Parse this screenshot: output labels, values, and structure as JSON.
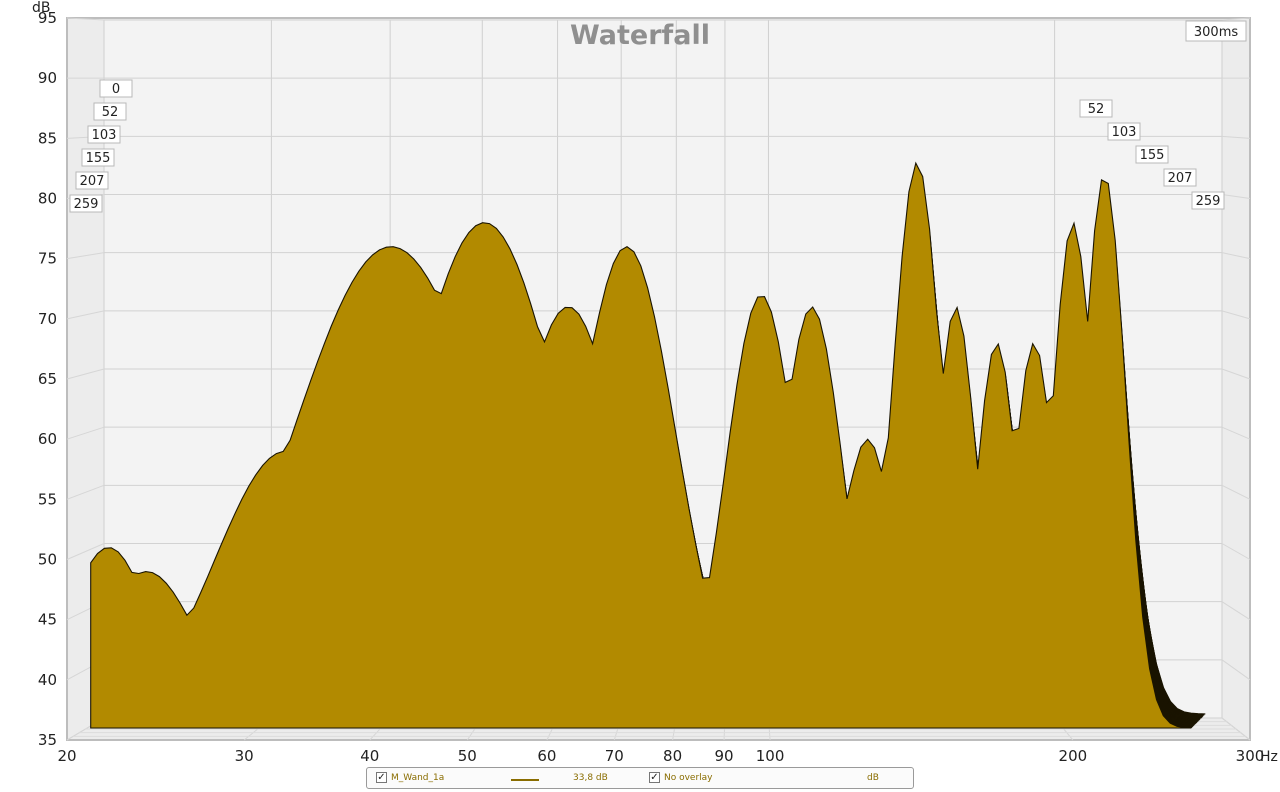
{
  "chart_data": {
    "type": "area",
    "style": "waterfall",
    "title": "Waterfall",
    "ylabel": "dB",
    "xlabel": "Hz",
    "x_scale": "log",
    "xlim": [
      20,
      300
    ],
    "ylim": [
      35,
      95
    ],
    "x_ticks": [
      20,
      30,
      40,
      50,
      60,
      70,
      80,
      90,
      100,
      200,
      300
    ],
    "y_ticks": [
      35,
      40,
      45,
      50,
      55,
      60,
      65,
      70,
      75,
      80,
      85,
      90,
      95
    ],
    "time_window": "300ms",
    "time_labels_left": [
      "0",
      "52",
      "103",
      "155",
      "207",
      "259"
    ],
    "time_labels_right": [
      "52",
      "103",
      "155",
      "207",
      "259"
    ],
    "fill_color": "#b28a00",
    "grid": true,
    "peaks": [
      {
        "freq": 22,
        "level": 53,
        "width": 0.06
      },
      {
        "freq": 24,
        "level": 51,
        "width": 0.07
      },
      {
        "freq": 33,
        "level": 61,
        "width": 0.1
      },
      {
        "freq": 42,
        "level": 78,
        "width": 0.14
      },
      {
        "freq": 52,
        "level": 80,
        "width": 0.11
      },
      {
        "freq": 63,
        "level": 73,
        "width": 0.08
      },
      {
        "freq": 72,
        "level": 78,
        "width": 0.07
      },
      {
        "freq": 98,
        "level": 74,
        "width": 0.05
      },
      {
        "freq": 110,
        "level": 73,
        "width": 0.045
      },
      {
        "freq": 125,
        "level": 62,
        "width": 0.04
      },
      {
        "freq": 140,
        "level": 85,
        "width": 0.035
      },
      {
        "freq": 153,
        "level": 73,
        "width": 0.03
      },
      {
        "freq": 168,
        "level": 70,
        "width": 0.03
      },
      {
        "freq": 183,
        "level": 70,
        "width": 0.03
      },
      {
        "freq": 200,
        "level": 80,
        "width": 0.03
      },
      {
        "freq": 215,
        "level": 84,
        "width": 0.03
      }
    ]
  },
  "legend": {
    "series_name": "M_Wand_1a",
    "series_value": "33,8 dB",
    "overlay_label": "No overlay",
    "unit": "dB"
  }
}
